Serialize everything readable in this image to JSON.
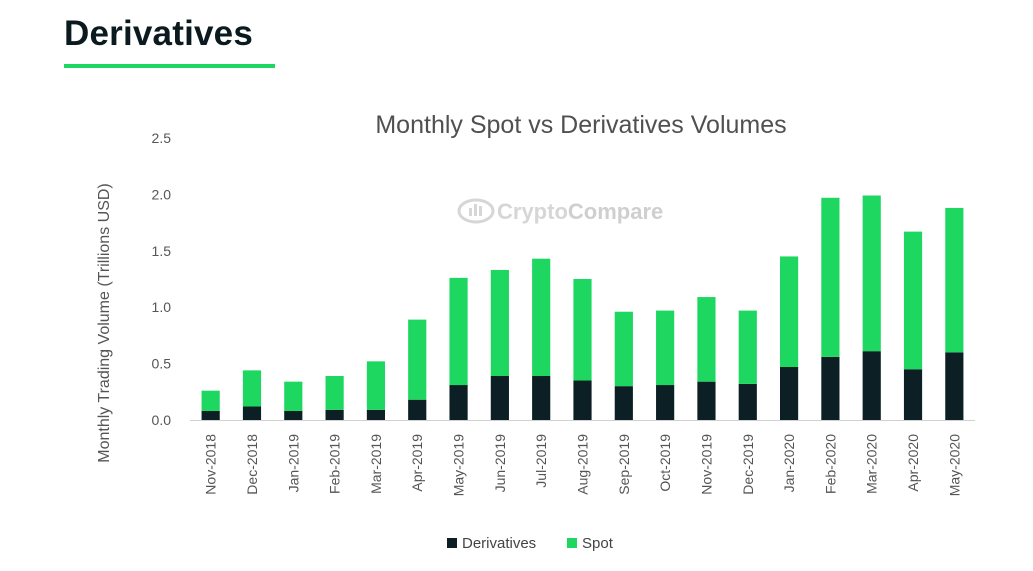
{
  "header": {
    "title": "Derivatives",
    "accent_color": "#1ed760"
  },
  "watermark": {
    "text_a": "Crypto",
    "text_b": "Compare"
  },
  "chart_data": {
    "type": "bar",
    "stacked": true,
    "title": "Monthly Spot vs Derivatives Volumes",
    "xlabel": "",
    "ylabel": "Monthly Trading Volume (Trillions USD)",
    "ylim": [
      0,
      2.5
    ],
    "yticks": [
      "0.0",
      "0.5",
      "1.0",
      "1.5",
      "2.0",
      "2.5"
    ],
    "grid": false,
    "legend_position": "bottom",
    "categories": [
      "Nov-2018",
      "Dec-2018",
      "Jan-2019",
      "Feb-2019",
      "Mar-2019",
      "Apr-2019",
      "May-2019",
      "Jun-2019",
      "Jul-2019",
      "Aug-2019",
      "Sep-2019",
      "Oct-2019",
      "Nov-2019",
      "Dec-2019",
      "Jan-2020",
      "Feb-2020",
      "Mar-2020",
      "Apr-2020",
      "May-2020"
    ],
    "series": [
      {
        "name": "Derivatives",
        "color": "#0c1f24",
        "values": [
          0.08,
          0.12,
          0.08,
          0.09,
          0.09,
          0.18,
          0.31,
          0.39,
          0.39,
          0.35,
          0.3,
          0.31,
          0.34,
          0.32,
          0.47,
          0.56,
          0.61,
          0.45,
          0.6
        ]
      },
      {
        "name": "Spot",
        "color": "#1ed760",
        "values": [
          0.18,
          0.32,
          0.26,
          0.3,
          0.43,
          0.71,
          0.95,
          0.94,
          1.04,
          0.9,
          0.66,
          0.66,
          0.75,
          0.65,
          0.98,
          1.41,
          1.38,
          1.22,
          1.28
        ]
      }
    ]
  }
}
